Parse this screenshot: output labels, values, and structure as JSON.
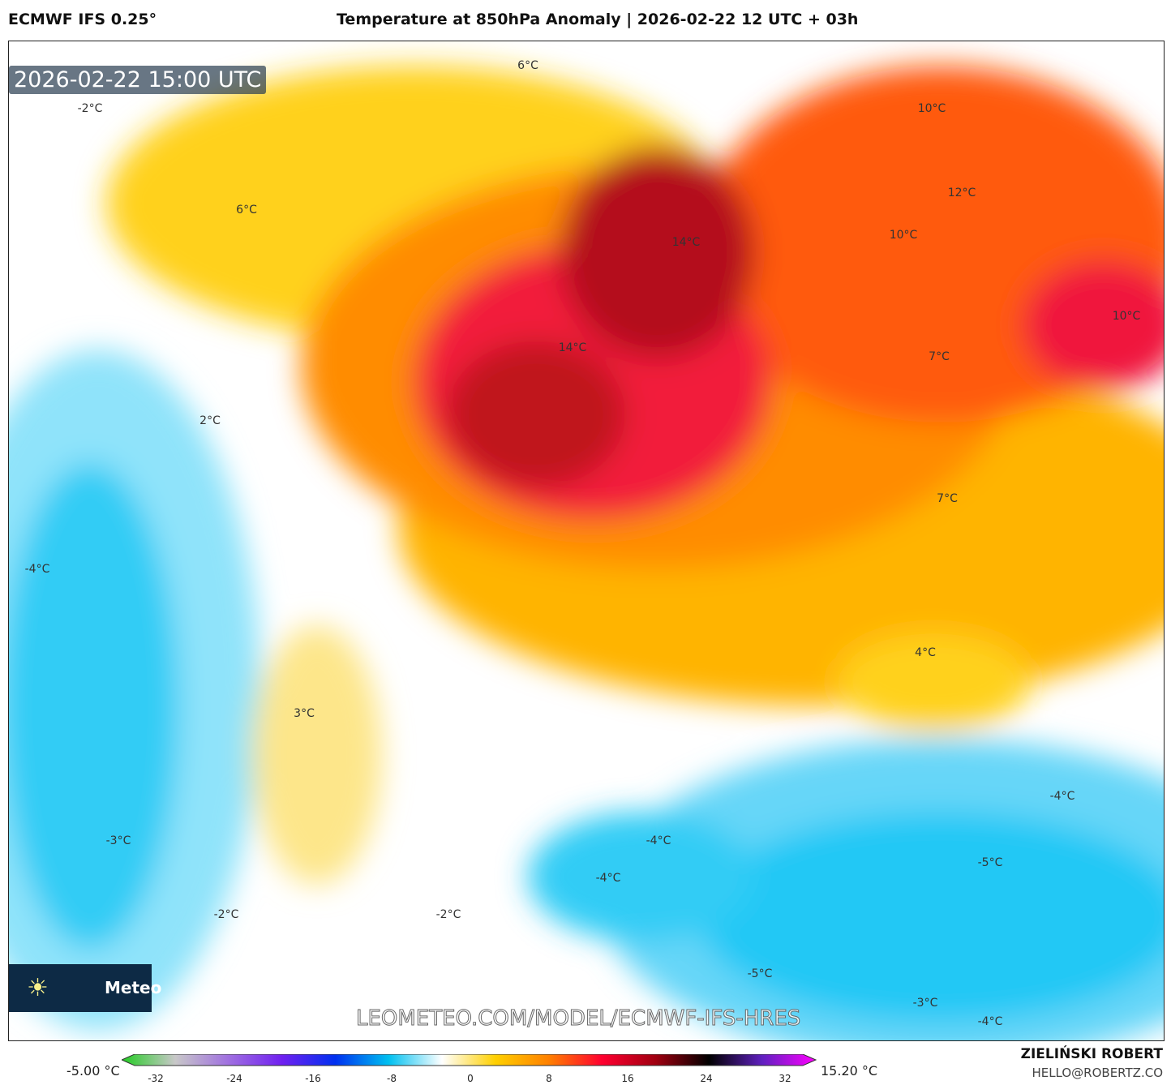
{
  "header": {
    "model": "ECMWF IFS 0.25°",
    "title": "Temperature at 850hPa Anomaly | 2026-02-22 12 UTC + 03h"
  },
  "map": {
    "valid_time": "2026-02-22 15:00 UTC",
    "watermark": "LEOMETEO.COM/MODEL/ECMWF-IFS-HRES",
    "logo_text": "Meteo",
    "contour_labels": [
      "-2°C",
      "6°C",
      "6°C",
      "10°C",
      "12°C",
      "14°C",
      "10°C",
      "10°C",
      "14°C",
      "7°C",
      "2°C",
      "7°C",
      "-4°C",
      "4°C",
      "3°C",
      "-4°C",
      "-3°C",
      "-4°C",
      "-5°C",
      "-4°C",
      "-2°C",
      "-2°C",
      "-5°C",
      "-3°C",
      "-4°C"
    ]
  },
  "colorbar": {
    "min_label": "-5.00 °C",
    "max_label": "15.20 °C",
    "ticks": [
      "-32",
      "-24",
      "-16",
      "-8",
      "0",
      "8",
      "16",
      "24",
      "32"
    ],
    "colors": [
      "#22cc22",
      "#c8c8c8",
      "#a070e0",
      "#7020f0",
      "#0030f0",
      "#00c0f0",
      "#ffffff",
      "#ffd000",
      "#ff8000",
      "#ff0030",
      "#a00010",
      "#000000",
      "#6020c0",
      "#ff00ff"
    ]
  },
  "footer": {
    "author": "ZIELIŃSKI ROBERT",
    "email": "HELLO@ROBERTZ.CO"
  }
}
